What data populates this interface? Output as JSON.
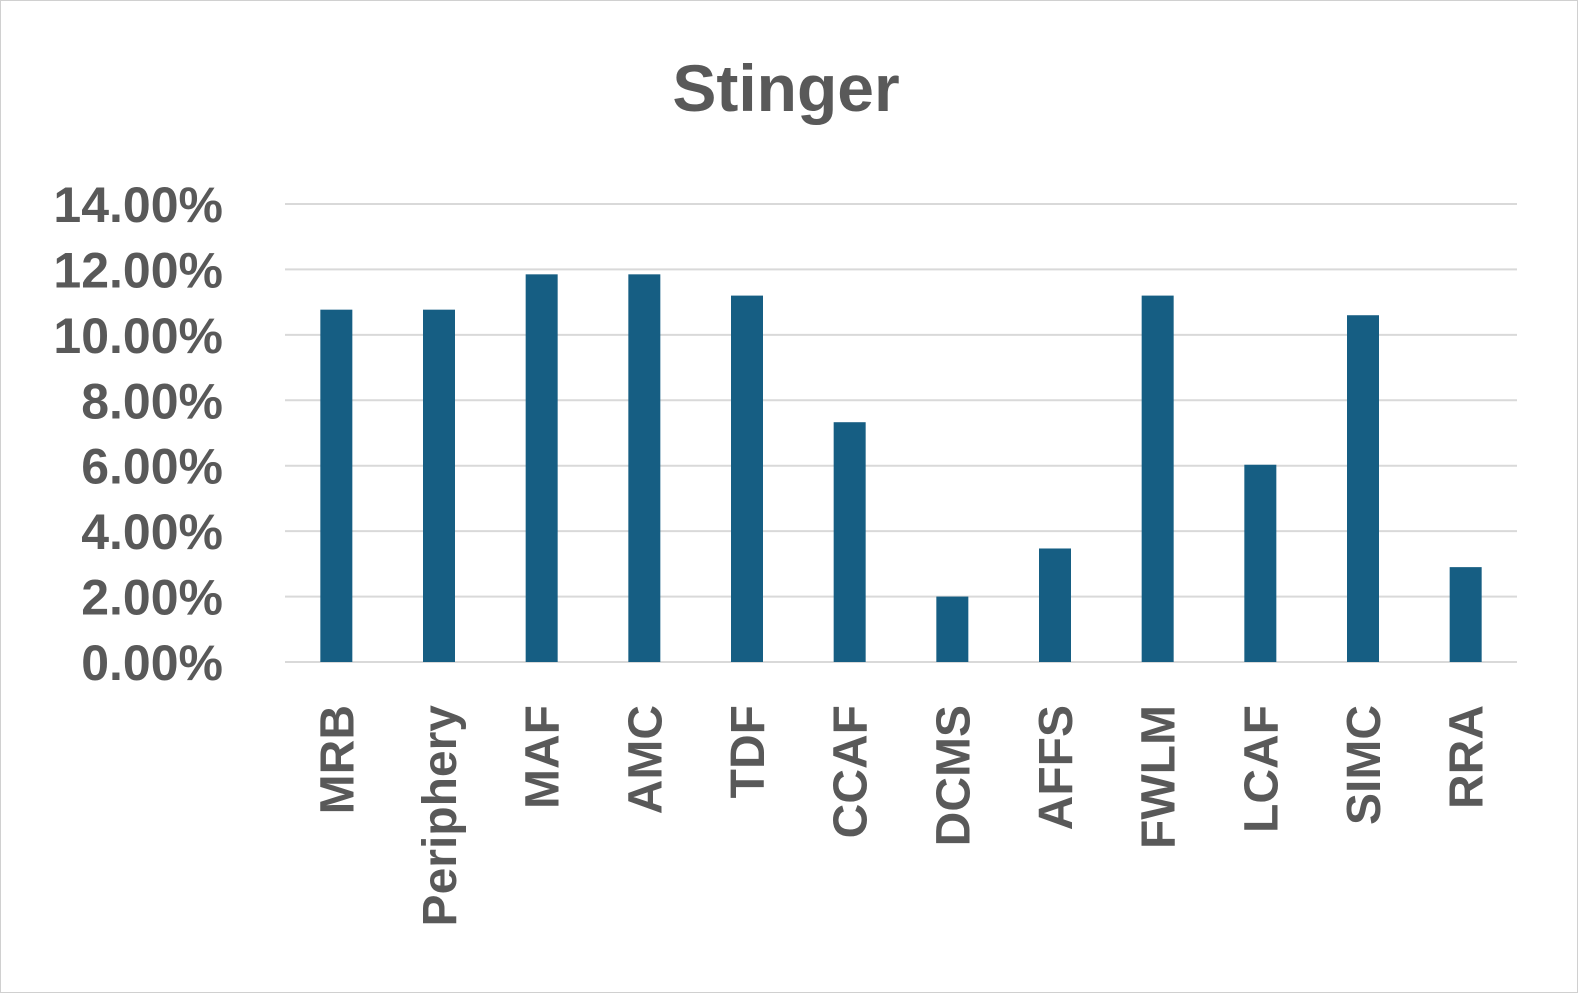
{
  "chart_data": {
    "type": "bar",
    "title": "Stinger",
    "xlabel": "",
    "ylabel": "",
    "categories": [
      "MRB",
      "Periphery",
      "MAF",
      "AMC",
      "TDF",
      "CCAF",
      "DCMS",
      "AFFS",
      "FWLM",
      "LCAF",
      "SIMC",
      "RRA"
    ],
    "values": [
      10.77,
      10.77,
      11.85,
      11.85,
      11.2,
      7.33,
      2.0,
      3.47,
      11.2,
      6.03,
      10.6,
      2.9
    ],
    "ylim": [
      0,
      14
    ],
    "yticks": [
      0,
      2,
      4,
      6,
      8,
      10,
      12,
      14
    ],
    "ytick_labels": [
      "0.00%",
      "2.00%",
      "4.00%",
      "6.00%",
      "8.00%",
      "10.00%",
      "12.00%",
      "14.00%"
    ],
    "grid": true,
    "legend": "none",
    "bar_color": "#165e83"
  }
}
